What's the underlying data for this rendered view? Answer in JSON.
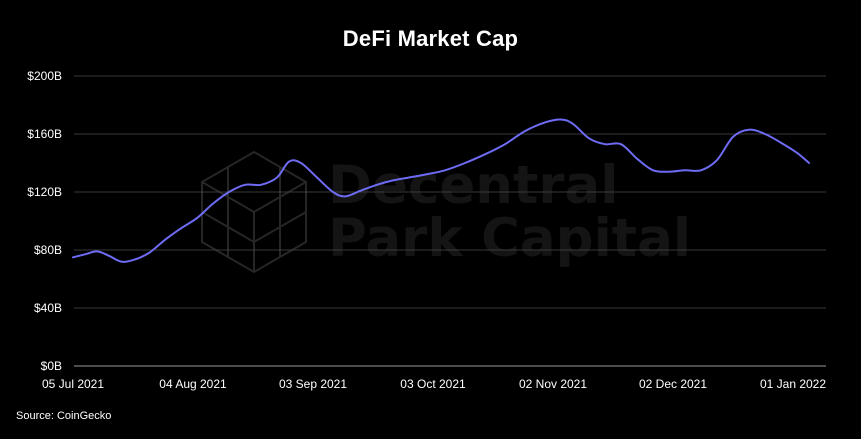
{
  "chart_data": {
    "type": "line",
    "title": "DeFi Market Cap",
    "xlabel": "",
    "ylabel": "",
    "x_ticks": [
      "05 Jul 2021",
      "04 Aug 2021",
      "03 Sep 2021",
      "03 Oct 2021",
      "02 Nov 2021",
      "02 Dec 2021",
      "01 Jan 2022"
    ],
    "y_ticks": [
      "$0B",
      "$40B",
      "$80B",
      "$120B",
      "$160B",
      "$200B"
    ],
    "ylim": [
      0,
      200
    ],
    "xlim": [
      "2021-07-05",
      "2022-01-15"
    ],
    "grid": true,
    "legend": "none",
    "series": [
      {
        "color": "#6e6cf5",
        "points": [
          [
            "2021-07-05",
            75
          ],
          [
            "2021-07-08",
            77
          ],
          [
            "2021-07-11",
            79
          ],
          [
            "2021-07-14",
            76
          ],
          [
            "2021-07-17",
            72
          ],
          [
            "2021-07-20",
            73
          ],
          [
            "2021-07-24",
            78
          ],
          [
            "2021-07-28",
            87
          ],
          [
            "2021-08-01",
            95
          ],
          [
            "2021-08-05",
            102
          ],
          [
            "2021-08-09",
            112
          ],
          [
            "2021-08-13",
            120
          ],
          [
            "2021-08-17",
            125
          ],
          [
            "2021-08-21",
            125
          ],
          [
            "2021-08-25",
            130
          ],
          [
            "2021-08-28",
            141
          ],
          [
            "2021-08-31",
            140
          ],
          [
            "2021-09-04",
            130
          ],
          [
            "2021-09-08",
            120
          ],
          [
            "2021-09-11",
            117
          ],
          [
            "2021-09-15",
            121
          ],
          [
            "2021-09-19",
            125
          ],
          [
            "2021-09-23",
            128
          ],
          [
            "2021-09-27",
            130
          ],
          [
            "2021-10-01",
            132
          ],
          [
            "2021-10-06",
            135
          ],
          [
            "2021-10-11",
            140
          ],
          [
            "2021-10-16",
            146
          ],
          [
            "2021-10-21",
            153
          ],
          [
            "2021-10-26",
            162
          ],
          [
            "2021-10-31",
            168
          ],
          [
            "2021-11-04",
            170
          ],
          [
            "2021-11-07",
            167
          ],
          [
            "2021-11-11",
            157
          ],
          [
            "2021-11-15",
            153
          ],
          [
            "2021-11-19",
            153
          ],
          [
            "2021-11-23",
            143
          ],
          [
            "2021-11-27",
            135
          ],
          [
            "2021-12-01",
            134
          ],
          [
            "2021-12-05",
            135
          ],
          [
            "2021-12-09",
            135
          ],
          [
            "2021-12-13",
            142
          ],
          [
            "2021-12-17",
            158
          ],
          [
            "2021-12-21",
            163
          ],
          [
            "2021-12-25",
            160
          ],
          [
            "2021-12-29",
            154
          ],
          [
            "2022-01-02",
            147
          ],
          [
            "2022-01-05",
            140
          ]
        ]
      }
    ]
  },
  "source": "Source: CoinGecko",
  "watermark": {
    "line1": "Decentral",
    "line2": "Park Capital"
  },
  "colors": {
    "background": "#000000",
    "gridline": "#4a4a4a",
    "axis": "#7a7a7a",
    "line": "#6e6cf5"
  }
}
